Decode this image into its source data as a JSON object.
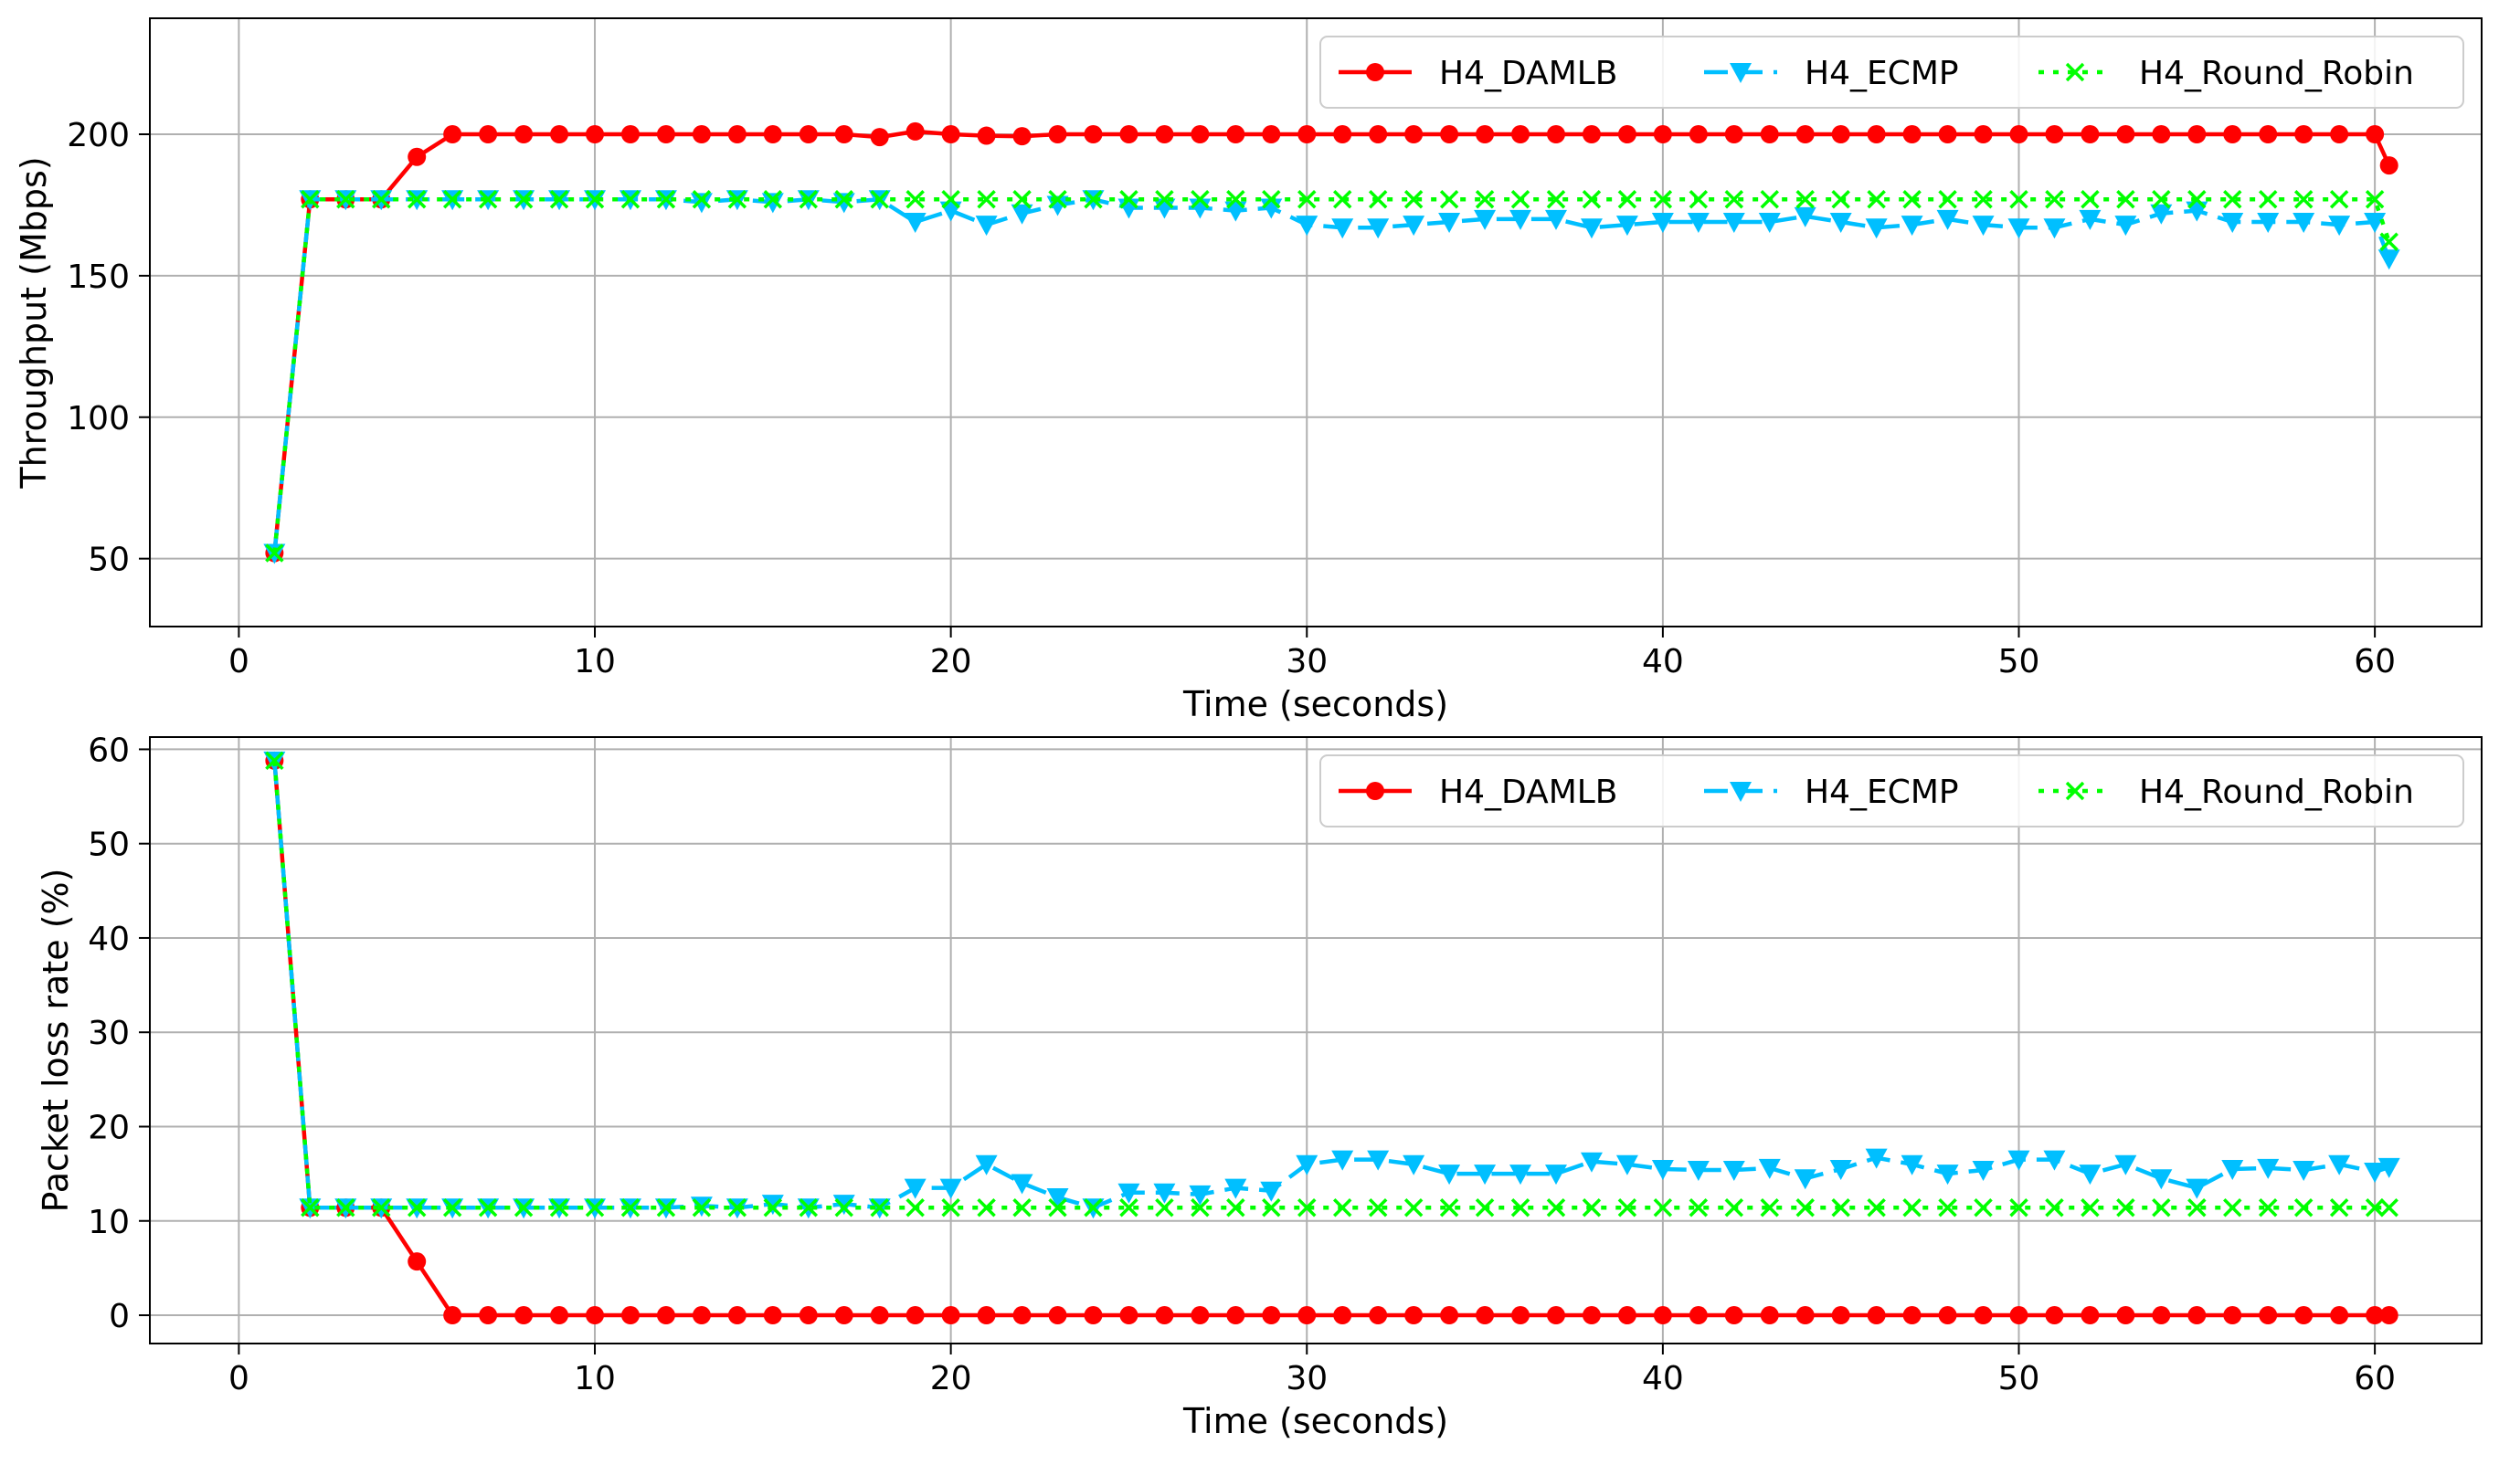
{
  "chart_data": [
    {
      "type": "line",
      "xlabel": "Time (seconds)",
      "ylabel": "Throughput (Mbps)",
      "xlim": [
        -2.5,
        63
      ],
      "ylim": [
        26,
        241
      ],
      "xticks": [
        0,
        10,
        20,
        30,
        40,
        50,
        60
      ],
      "yticks": [
        50,
        100,
        150,
        200
      ],
      "grid": true,
      "legend_position": "upper-right",
      "series": [
        {
          "name": "H4_DAMLB",
          "color": "#ff0000",
          "marker": "circle",
          "linestyle": "solid",
          "x": [
            1,
            2,
            3,
            4,
            5,
            6,
            7,
            8,
            9,
            10,
            11,
            12,
            13,
            14,
            15,
            16,
            17,
            18,
            19,
            20,
            21,
            22,
            23,
            24,
            25,
            26,
            27,
            28,
            29,
            30,
            31,
            32,
            33,
            34,
            35,
            36,
            37,
            38,
            39,
            40,
            41,
            42,
            43,
            44,
            45,
            46,
            47,
            48,
            49,
            50,
            51,
            52,
            53,
            54,
            55,
            56,
            57,
            58,
            59,
            60,
            60.4
          ],
          "y": [
            52,
            177,
            177,
            177,
            192,
            200,
            200,
            200,
            200,
            200,
            200,
            200,
            200,
            200,
            200,
            200,
            200,
            199,
            201,
            200,
            199.5,
            199.3,
            200,
            200,
            200,
            200,
            200,
            200,
            200,
            200,
            200,
            200,
            200,
            200,
            200,
            200,
            200,
            200,
            200,
            200,
            200,
            200,
            200,
            200,
            200,
            200,
            200,
            200,
            200,
            200,
            200,
            200,
            200,
            200,
            200,
            200,
            200,
            200,
            200,
            200,
            189
          ]
        },
        {
          "name": "H4_ECMP",
          "color": "#00bfff",
          "marker": "triangle-down",
          "linestyle": "dashed",
          "x": [
            1,
            2,
            3,
            4,
            5,
            6,
            7,
            8,
            9,
            10,
            11,
            12,
            13,
            14,
            15,
            16,
            17,
            18,
            19,
            20,
            21,
            22,
            23,
            24,
            25,
            26,
            27,
            28,
            29,
            30,
            31,
            32,
            33,
            34,
            35,
            36,
            37,
            38,
            39,
            40,
            41,
            42,
            43,
            44,
            45,
            46,
            47,
            48,
            49,
            50,
            51,
            52,
            53,
            54,
            55,
            56,
            57,
            58,
            59,
            60,
            60.4
          ],
          "y": [
            52,
            177,
            177,
            177,
            177,
            177,
            177,
            177,
            177,
            177,
            177,
            177,
            176,
            177,
            176,
            177,
            176,
            177,
            169,
            173,
            168,
            172,
            175,
            177,
            174,
            174,
            174,
            173,
            174,
            168,
            167,
            167,
            168,
            169,
            170,
            170,
            170,
            167,
            168,
            169,
            169,
            169,
            169,
            171,
            169,
            167,
            168,
            170,
            168,
            167,
            167,
            170,
            168,
            172,
            173,
            169,
            169,
            169,
            168,
            169,
            156
          ]
        },
        {
          "name": "H4_Round_Robin",
          "color": "#00ff00",
          "marker": "x",
          "linestyle": "dotted",
          "x": [
            1,
            2,
            3,
            4,
            5,
            6,
            7,
            8,
            9,
            10,
            11,
            12,
            13,
            14,
            15,
            16,
            17,
            18,
            19,
            20,
            21,
            22,
            23,
            24,
            25,
            26,
            27,
            28,
            29,
            30,
            31,
            32,
            33,
            34,
            35,
            36,
            37,
            38,
            39,
            40,
            41,
            42,
            43,
            44,
            45,
            46,
            47,
            48,
            49,
            50,
            51,
            52,
            53,
            54,
            55,
            56,
            57,
            58,
            59,
            60,
            60.4
          ],
          "y": [
            52,
            177,
            177,
            177,
            177,
            177,
            177,
            177,
            177,
            177,
            177,
            177,
            177,
            177,
            177,
            177,
            177,
            177,
            177,
            177,
            177,
            177,
            177,
            177,
            177,
            177,
            177,
            177,
            177,
            177,
            177,
            177,
            177,
            177,
            177,
            177,
            177,
            177,
            177,
            177,
            177,
            177,
            177,
            177,
            177,
            177,
            177,
            177,
            177,
            177,
            177,
            177,
            177,
            177,
            177,
            177,
            177,
            177,
            177,
            177,
            162
          ]
        }
      ]
    },
    {
      "type": "line",
      "xlabel": "Time (seconds)",
      "ylabel": "Packet loss rate (%)",
      "xlim": [
        -2.5,
        63
      ],
      "ylim": [
        -3,
        61.3
      ],
      "xticks": [
        0,
        10,
        20,
        30,
        40,
        50,
        60
      ],
      "yticks": [
        0,
        10,
        20,
        30,
        40,
        50,
        60
      ],
      "grid": true,
      "legend_position": "upper-right",
      "series": [
        {
          "name": "H4_DAMLB",
          "color": "#ff0000",
          "marker": "circle",
          "linestyle": "solid",
          "x": [
            1,
            2,
            3,
            4,
            5,
            6,
            7,
            8,
            9,
            10,
            11,
            12,
            13,
            14,
            15,
            16,
            17,
            18,
            19,
            20,
            21,
            22,
            23,
            24,
            25,
            26,
            27,
            28,
            29,
            30,
            31,
            32,
            33,
            34,
            35,
            36,
            37,
            38,
            39,
            40,
            41,
            42,
            43,
            44,
            45,
            46,
            47,
            48,
            49,
            50,
            51,
            52,
            53,
            54,
            55,
            56,
            57,
            58,
            59,
            60,
            60.4
          ],
          "y": [
            58.8,
            11.4,
            11.4,
            11.4,
            5.7,
            0,
            0,
            0,
            0,
            0,
            0,
            0,
            0,
            0,
            0,
            0,
            0,
            0,
            0,
            0,
            0,
            0,
            0,
            0,
            0,
            0,
            0,
            0,
            0,
            0,
            0,
            0,
            0,
            0,
            0,
            0,
            0,
            0,
            0,
            0,
            0,
            0,
            0,
            0,
            0,
            0,
            0,
            0,
            0,
            0,
            0,
            0,
            0,
            0,
            0,
            0,
            0,
            0,
            0,
            0,
            0
          ]
        },
        {
          "name": "H4_ECMP",
          "color": "#00bfff",
          "marker": "triangle-down",
          "linestyle": "dashed",
          "x": [
            1,
            2,
            3,
            4,
            5,
            6,
            7,
            8,
            9,
            10,
            11,
            12,
            13,
            14,
            15,
            16,
            17,
            18,
            19,
            20,
            21,
            22,
            23,
            24,
            25,
            26,
            27,
            28,
            29,
            30,
            31,
            32,
            33,
            34,
            35,
            36,
            37,
            38,
            39,
            40,
            41,
            42,
            43,
            44,
            45,
            46,
            47,
            48,
            49,
            50,
            51,
            52,
            53,
            54,
            55,
            56,
            57,
            58,
            59,
            60,
            60.4
          ],
          "y": [
            58.8,
            11.4,
            11.4,
            11.4,
            11.4,
            11.4,
            11.4,
            11.4,
            11.4,
            11.4,
            11.4,
            11.4,
            11.6,
            11.4,
            11.8,
            11.4,
            11.8,
            11.4,
            13.5,
            13.5,
            16,
            14,
            12.5,
            11.4,
            13,
            13,
            12.8,
            13.5,
            13.2,
            16,
            16.5,
            16.5,
            16,
            15,
            15,
            15,
            15,
            16.3,
            16,
            15.5,
            15.4,
            15.4,
            15.6,
            14.5,
            15.5,
            16.7,
            16,
            15,
            15.4,
            16.5,
            16.5,
            15,
            16,
            14.5,
            13.5,
            15.5,
            15.6,
            15.4,
            16,
            15.2,
            15.7
          ]
        },
        {
          "name": "H4_Round_Robin",
          "color": "#00ff00",
          "marker": "x",
          "linestyle": "dotted",
          "x": [
            1,
            2,
            3,
            4,
            5,
            6,
            7,
            8,
            9,
            10,
            11,
            12,
            13,
            14,
            15,
            16,
            17,
            18,
            19,
            20,
            21,
            22,
            23,
            24,
            25,
            26,
            27,
            28,
            29,
            30,
            31,
            32,
            33,
            34,
            35,
            36,
            37,
            38,
            39,
            40,
            41,
            42,
            43,
            44,
            45,
            46,
            47,
            48,
            49,
            50,
            51,
            52,
            53,
            54,
            55,
            56,
            57,
            58,
            59,
            60,
            60.4
          ],
          "y": [
            58.8,
            11.4,
            11.4,
            11.4,
            11.4,
            11.4,
            11.4,
            11.4,
            11.4,
            11.4,
            11.4,
            11.4,
            11.4,
            11.4,
            11.4,
            11.4,
            11.4,
            11.4,
            11.4,
            11.4,
            11.4,
            11.4,
            11.4,
            11.4,
            11.4,
            11.4,
            11.4,
            11.4,
            11.4,
            11.4,
            11.4,
            11.4,
            11.4,
            11.4,
            11.4,
            11.4,
            11.4,
            11.4,
            11.4,
            11.4,
            11.4,
            11.4,
            11.4,
            11.4,
            11.4,
            11.4,
            11.4,
            11.4,
            11.4,
            11.4,
            11.4,
            11.4,
            11.4,
            11.4,
            11.4,
            11.4,
            11.4,
            11.4,
            11.4,
            11.4,
            11.4
          ]
        }
      ]
    }
  ]
}
